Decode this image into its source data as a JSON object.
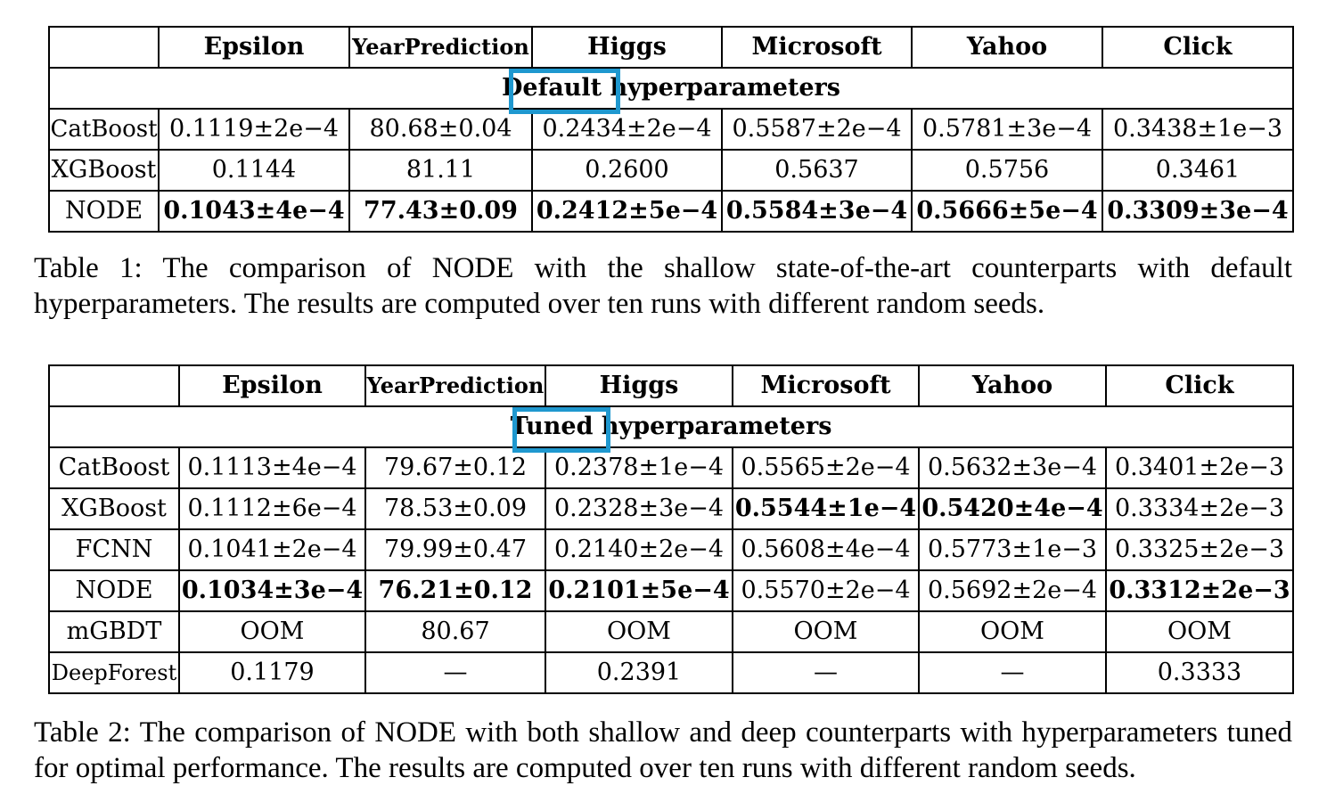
{
  "table1": {
    "headers": [
      "",
      "Epsilon",
      "YearPrediction",
      "Higgs",
      "Microsoft",
      "Yahoo",
      "Click"
    ],
    "band_label": "Default hyperparameters",
    "band_highlight_word": "Default",
    "rows": [
      {
        "model": "CatBoost",
        "cells": [
          "0.1119±2e−4",
          "80.68±0.04",
          "0.2434±2e−4",
          "0.5587±2e−4",
          "0.5781±3e−4",
          "0.3438±1e−3"
        ],
        "bold": [
          false,
          false,
          false,
          false,
          false,
          false
        ]
      },
      {
        "model": "XGBoost",
        "cells": [
          "0.1144",
          "81.11",
          "0.2600",
          "0.5637",
          "0.5756",
          "0.3461"
        ],
        "bold": [
          false,
          false,
          false,
          false,
          false,
          false
        ]
      },
      {
        "model": "NODE",
        "cells": [
          "0.1043±4e−4",
          "77.43±0.09",
          "0.2412±5e−4",
          "0.5584±3e−4",
          "0.5666±5e−4",
          "0.3309±3e−4"
        ],
        "bold": [
          true,
          true,
          true,
          true,
          true,
          true
        ]
      }
    ],
    "caption": "Table 1: The comparison of NODE with the shallow state-of-the-art counterparts with default hyperparameters. The results are computed over ten runs with different random seeds."
  },
  "table2": {
    "headers": [
      "",
      "Epsilon",
      "YearPrediction",
      "Higgs",
      "Microsoft",
      "Yahoo",
      "Click"
    ],
    "band_label": "Tuned hyperparameters",
    "band_highlight_word": "Tuned",
    "rows": [
      {
        "model": "CatBoost",
        "cells": [
          "0.1113±4e−4",
          "79.67±0.12",
          "0.2378±1e−4",
          "0.5565±2e−4",
          "0.5632±3e−4",
          "0.3401±2e−3"
        ],
        "bold": [
          false,
          false,
          false,
          false,
          false,
          false
        ]
      },
      {
        "model": "XGBoost",
        "cells": [
          "0.1112±6e−4",
          "78.53±0.09",
          "0.2328±3e−4",
          "0.5544±1e−4",
          "0.5420±4e−4",
          "0.3334±2e−3"
        ],
        "bold": [
          false,
          false,
          false,
          true,
          true,
          false
        ]
      },
      {
        "model": "FCNN",
        "cells": [
          "0.1041±2e−4",
          "79.99±0.47",
          "0.2140±2e−4",
          "0.5608±4e−4",
          "0.5773±1e−3",
          "0.3325±2e−3"
        ],
        "bold": [
          false,
          false,
          false,
          false,
          false,
          false
        ]
      },
      {
        "model": "NODE",
        "cells": [
          "0.1034±3e−4",
          "76.21±0.12",
          "0.2101±5e−4",
          "0.5570±2e−4",
          "0.5692±2e−4",
          "0.3312±2e−3"
        ],
        "bold": [
          true,
          true,
          true,
          false,
          false,
          true
        ]
      },
      {
        "model": "mGBDT",
        "cells": [
          "OOM",
          "80.67",
          "OOM",
          "OOM",
          "OOM",
          "OOM"
        ],
        "bold": [
          false,
          false,
          false,
          false,
          false,
          false
        ]
      },
      {
        "model": "DeepForest",
        "cells": [
          "0.1179",
          "—",
          "0.2391",
          "—",
          "—",
          "0.3333"
        ],
        "bold": [
          false,
          false,
          false,
          false,
          false,
          false
        ]
      }
    ],
    "caption": "Table 2: The comparison of NODE with both shallow and deep counterparts with hyperparameters tuned for optimal performance. The results are computed over ten runs with different random seeds."
  },
  "highlight_color": "#1f98cf"
}
